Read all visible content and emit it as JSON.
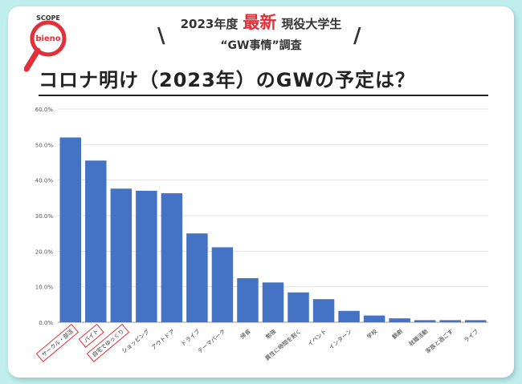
{
  "header": {
    "year_label": "2023年度",
    "accent": "最新",
    "audience": "現役大学生",
    "subtitle": "“GW事情”調査"
  },
  "logo": {
    "scope": "SCOPE",
    "name": "bieno"
  },
  "colors": {
    "bar": "#4472c4",
    "accent": "#e0303a",
    "background": "#bfeeed"
  },
  "chart_data": {
    "type": "bar",
    "title": "コロナ明け（2023年）のGWの予定は？",
    "categories": [
      "サークル・部活",
      "バイト",
      "自宅でゆっくり",
      "ショッピング",
      "アウトドア",
      "ドライブ",
      "テーマパーク",
      "帰省",
      "勉強",
      "異性に時間を割く",
      "イベント",
      "インターン",
      "学校",
      "観劇",
      "就職活動",
      "家族と過ごす",
      "ライブ"
    ],
    "values": [
      52.0,
      45.5,
      37.6,
      37.0,
      36.3,
      25.0,
      21.1,
      12.4,
      11.2,
      8.4,
      6.5,
      3.2,
      1.9,
      1.1,
      0.6,
      0.6,
      0.6
    ],
    "highlighted": [
      "サークル・部活",
      "バイト",
      "自宅でゆっくり"
    ],
    "ylim": [
      0,
      60
    ],
    "yticks": [
      "0.0%",
      "10.0%",
      "20.0%",
      "30.0%",
      "40.0%",
      "50.0%",
      "60.0%"
    ],
    "grid": true
  }
}
